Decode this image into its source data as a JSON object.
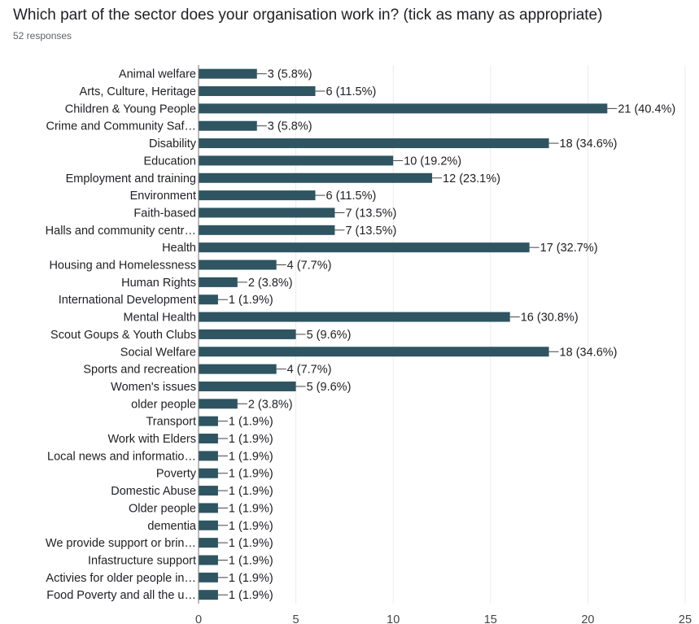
{
  "header": {
    "title": "Which part of the sector does your organisation work in? (tick as many as appropriate)",
    "response_count": "52 responses"
  },
  "colors": {
    "bar": "#2e5561",
    "grid": "#ebebeb",
    "axis": "#757575"
  },
  "chart_data": {
    "type": "bar",
    "orientation": "horizontal",
    "xlim": [
      0,
      25
    ],
    "xticks": [
      "0",
      "5",
      "10",
      "15",
      "20",
      "25"
    ],
    "grid": true,
    "categories": [
      "Animal welfare",
      "Arts, Culture, Heritage",
      "Children & Young People",
      "Crime and Community Saf…",
      "Disability",
      "Education",
      "Employment and training",
      "Environment",
      "Faith-based",
      "Halls and community centr…",
      "Health",
      "Housing and Homelessness",
      "Human Rights",
      "International Development",
      "Mental Health",
      "Scout Goups & Youth Clubs",
      "Social Welfare",
      "Sports and recreation",
      "Women's issues",
      "older people",
      "Transport",
      "Work with Elders",
      "Local news and informatio…",
      "Poverty",
      "Domestic Abuse",
      "Older people",
      "dementia",
      "We provide support or brin…",
      "Infastructure support",
      "Activies for older people in…",
      "Food Poverty and all the u…"
    ],
    "values": [
      3,
      6,
      21,
      3,
      18,
      10,
      12,
      6,
      7,
      7,
      17,
      4,
      2,
      1,
      16,
      5,
      18,
      4,
      5,
      2,
      1,
      1,
      1,
      1,
      1,
      1,
      1,
      1,
      1,
      1,
      1
    ],
    "value_labels": [
      "3 (5.8%)",
      "6 (11.5%)",
      "21 (40.4%)",
      "3 (5.8%)",
      "18 (34.6%)",
      "10 (19.2%)",
      "12 (23.1%)",
      "6 (11.5%)",
      "7 (13.5%)",
      "7 (13.5%)",
      "17 (32.7%)",
      "4 (7.7%)",
      "2 (3.8%)",
      "1 (1.9%)",
      "16 (30.8%)",
      "5 (9.6%)",
      "18 (34.6%)",
      "4 (7.7%)",
      "5 (9.6%)",
      "2 (3.8%)",
      "1 (1.9%)",
      "1 (1.9%)",
      "1 (1.9%)",
      "1 (1.9%)",
      "1 (1.9%)",
      "1 (1.9%)",
      "1 (1.9%)",
      "1 (1.9%)",
      "1 (1.9%)",
      "1 (1.9%)",
      "1 (1.9%)"
    ]
  }
}
